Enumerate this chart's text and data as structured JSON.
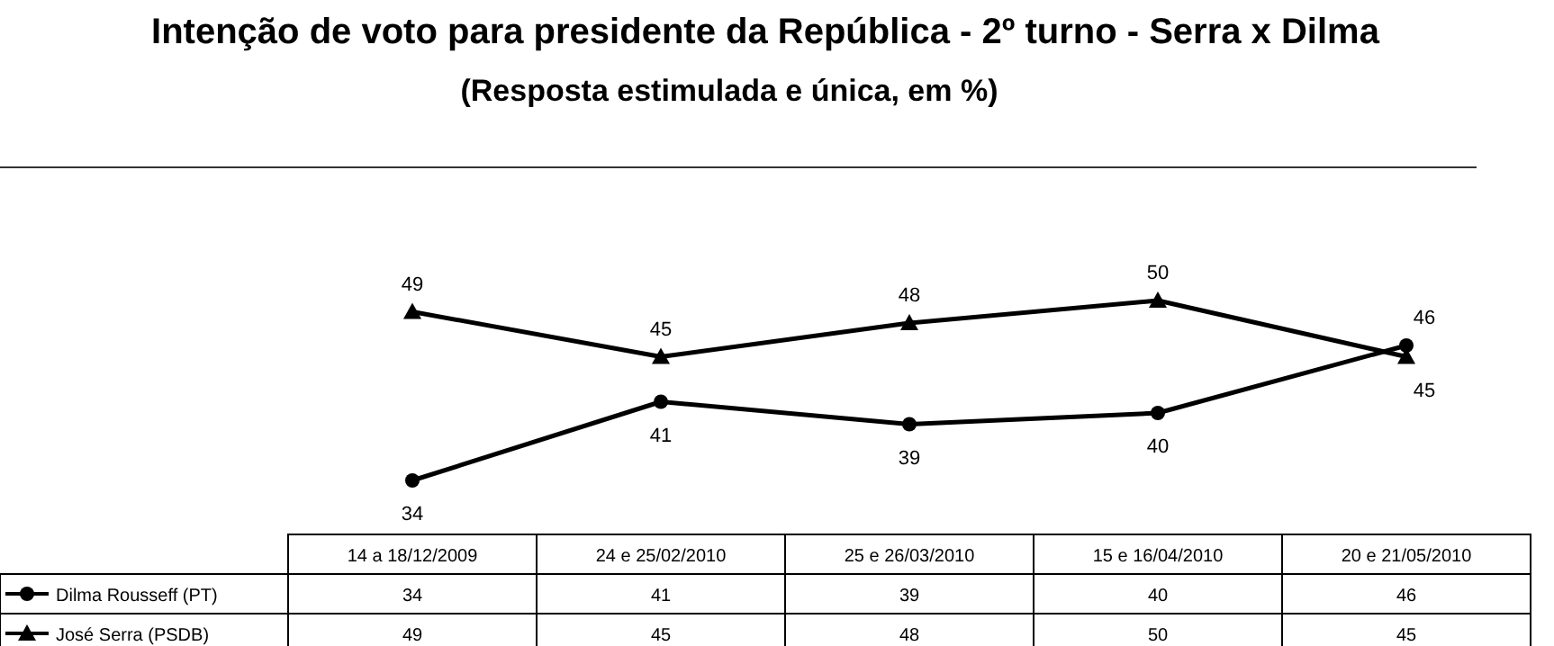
{
  "chart_data": {
    "type": "line",
    "title": "Intenção de voto para presidente da República - 2º turno - Serra x Dilma",
    "subtitle": "(Resposta estimulada e única, em %)",
    "categories": [
      "14 a 18/12/2009",
      "24 e 25/02/2010",
      "25 e 26/03/2010",
      "15 e 16/04/2010",
      "20 e 21/05/2010"
    ],
    "series": [
      {
        "name": "Dilma Rousseff (PT)",
        "color": "#000000",
        "marker": "circle",
        "values": [
          34,
          41,
          39,
          40,
          46
        ],
        "value_labels": [
          "34",
          "41",
          "39",
          "40",
          "46"
        ]
      },
      {
        "name": "José Serra (PSDB)",
        "color": "#000000",
        "marker": "triangle",
        "values": [
          49,
          45,
          48,
          50,
          45
        ],
        "value_labels": [
          "49",
          "45",
          "48",
          "50",
          "45"
        ]
      }
    ],
    "annotations": [
      "34",
      "41",
      "39",
      "40",
      "46",
      "49",
      "45",
      "48",
      "50",
      "45"
    ],
    "legend": "bottom",
    "grid": false,
    "line_style": "solid"
  }
}
